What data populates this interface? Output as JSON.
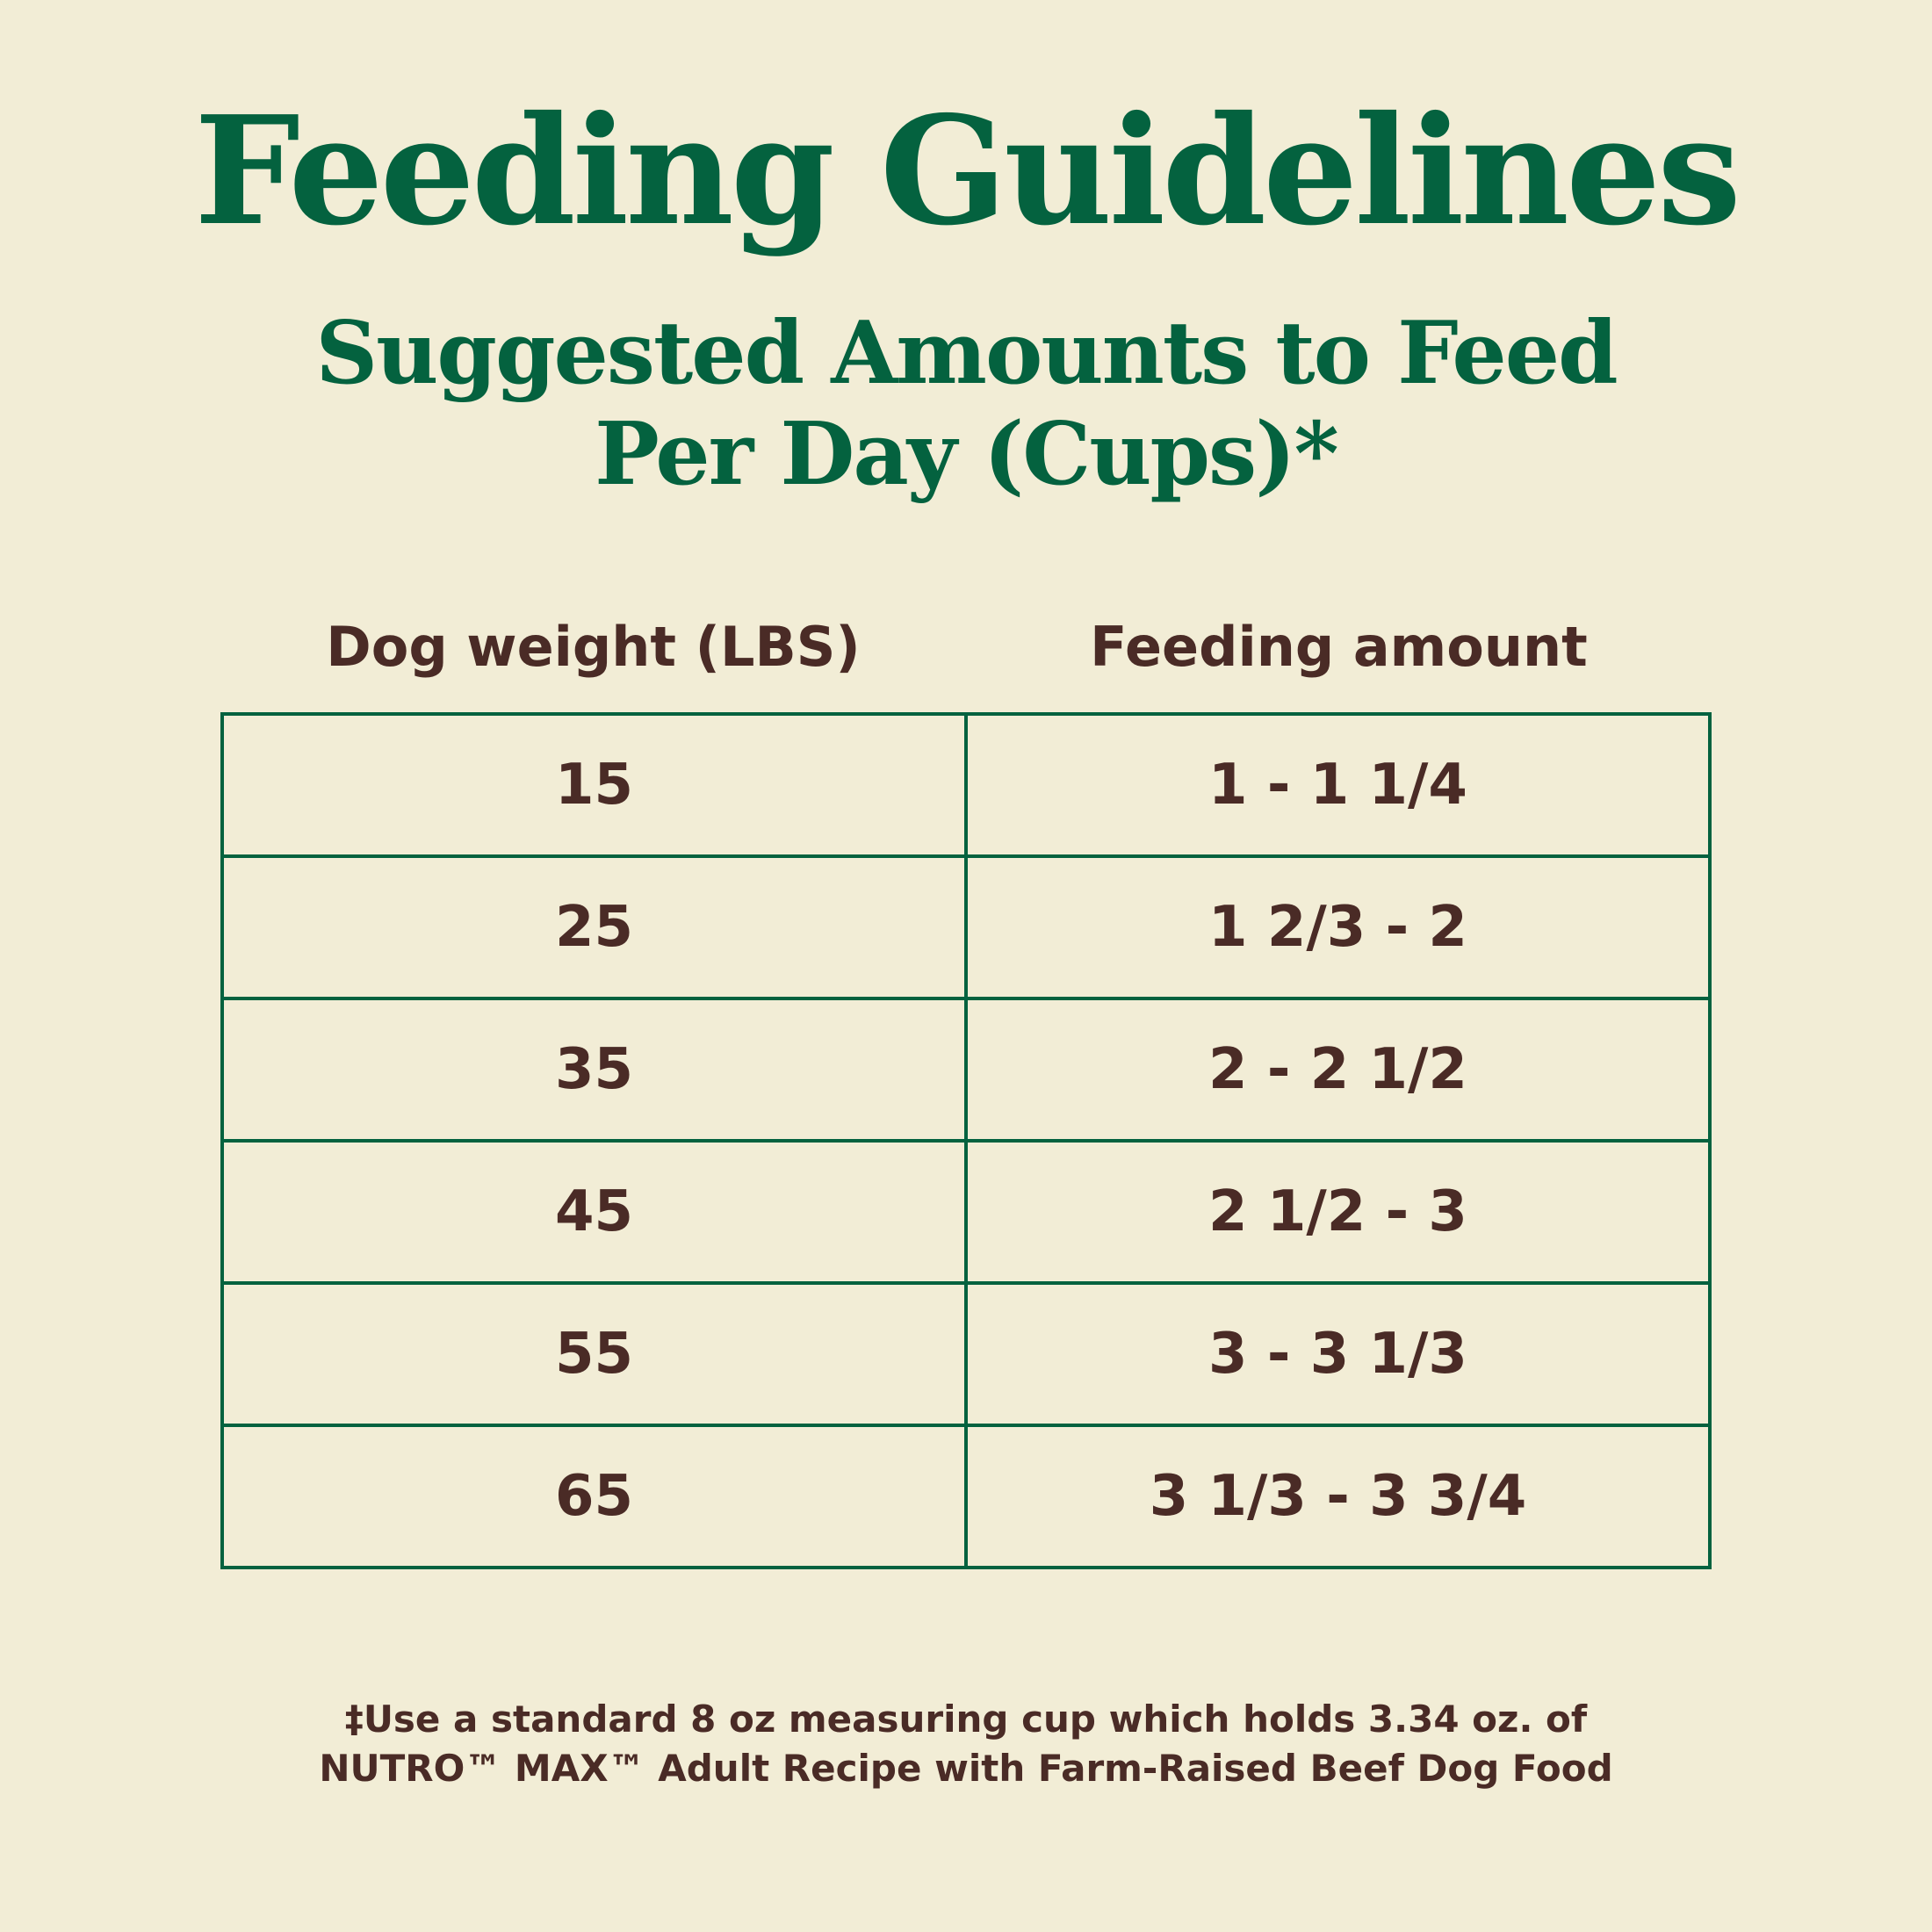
{
  "header": {
    "title": "Feeding Guidelines",
    "subtitle": [
      "Suggested Amounts to Feed",
      "Per Day (Cups)*"
    ]
  },
  "table": {
    "columns": [
      "Dog weight (LBS)",
      "Feeding amount"
    ],
    "rows": [
      [
        15,
        "1 - 1 1/4"
      ],
      [
        25,
        "1 2/3 - 2"
      ],
      [
        35,
        "2 - 2 1/2"
      ],
      [
        45,
        "2 1/2 - 3"
      ],
      [
        55,
        "3 - 3 1/3"
      ],
      [
        65,
        "3 1/3 - 3 3/4"
      ]
    ]
  },
  "footnote": [
    "‡Use a standard 8 oz measuring cup which holds 3.34 oz. of",
    "NUTRO™ MAX™ Adult Recipe with Farm-Raised Beef Dog Food"
  ]
}
